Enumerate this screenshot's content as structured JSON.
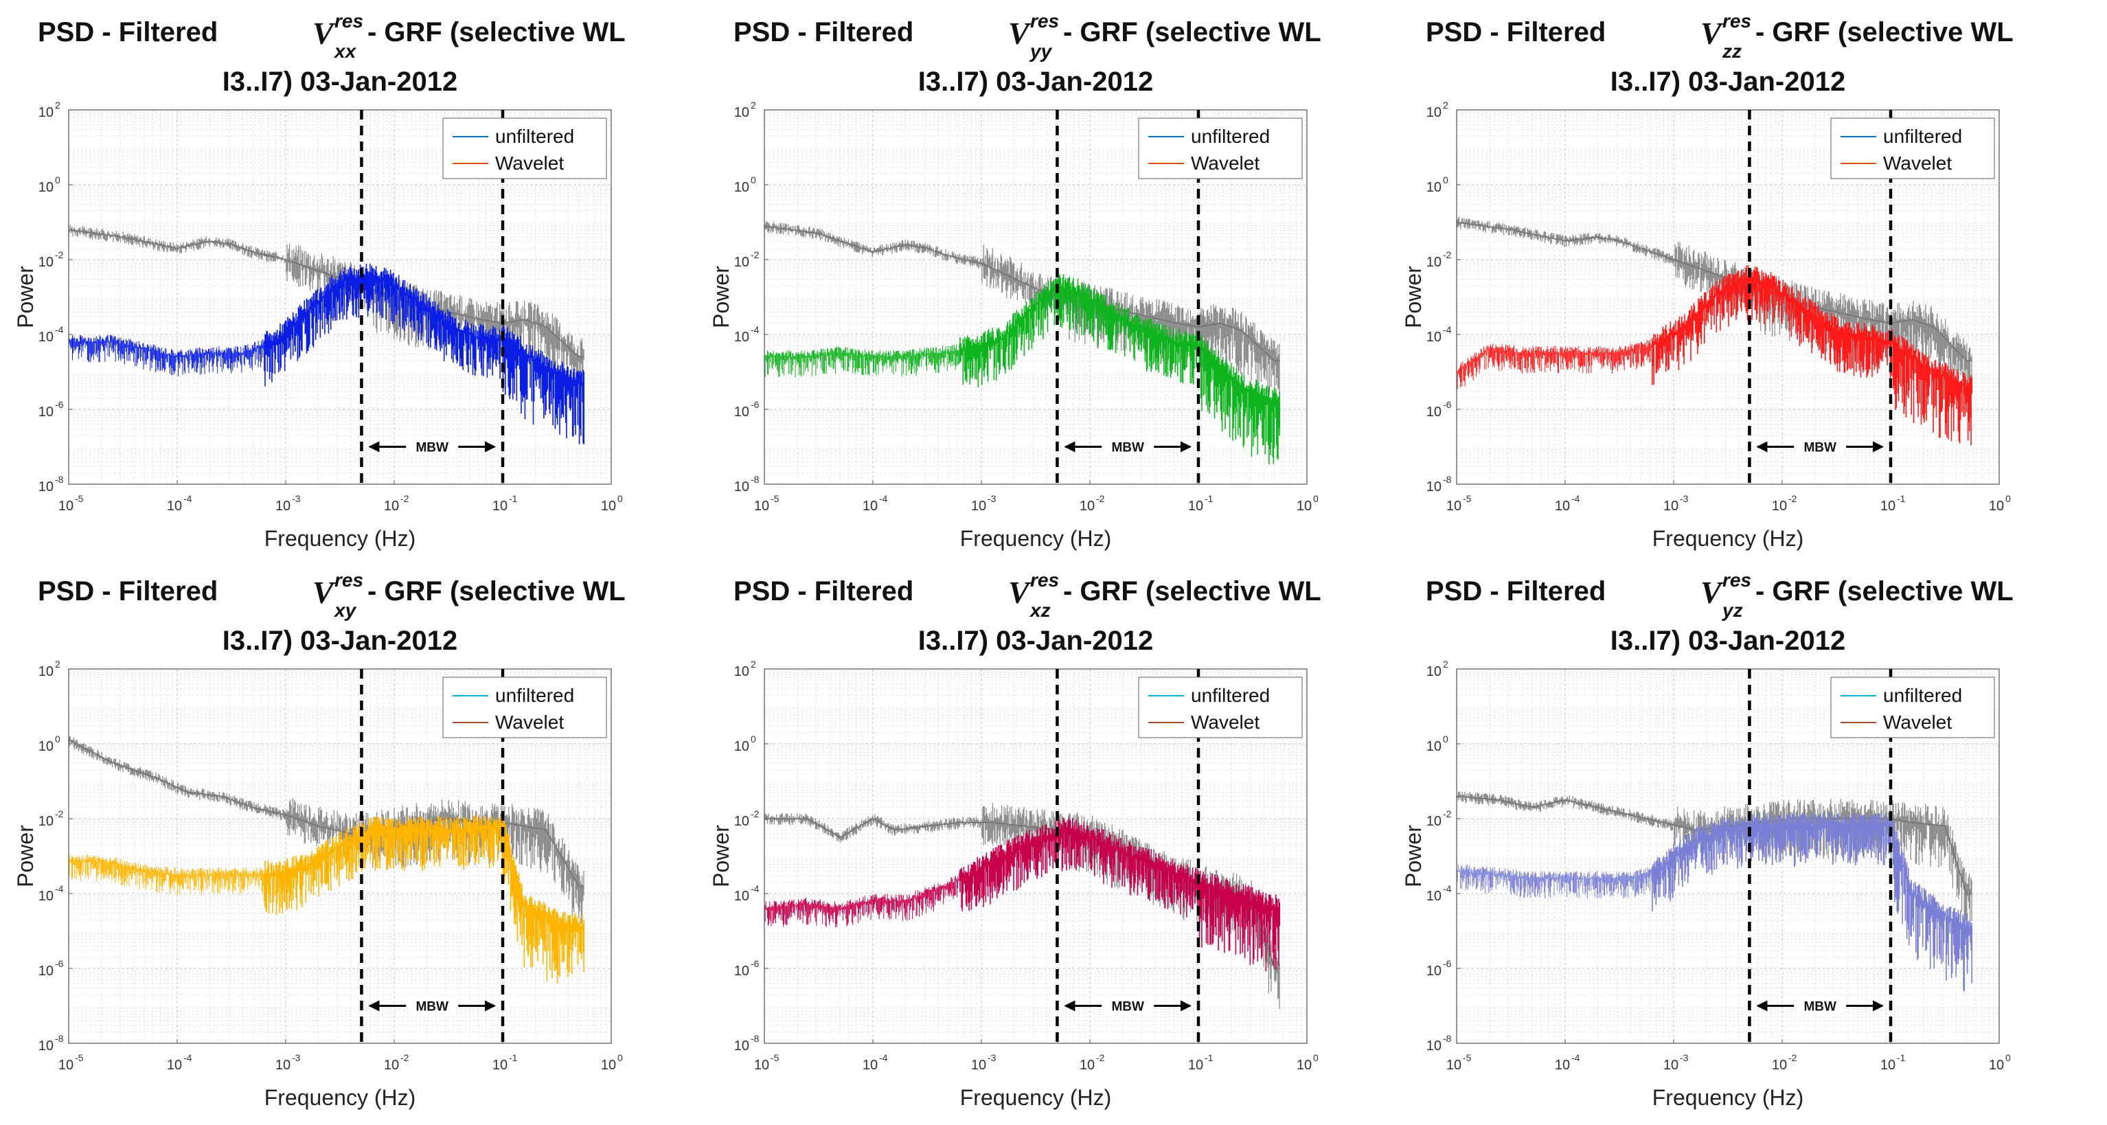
{
  "chart_data": [
    {
      "type": "line",
      "title_prefix": "PSD - Filtered",
      "title_symbol": "V",
      "title_sup": "res",
      "title_sub": "xx",
      "title_suffix": "- GRF (selective WL",
      "title_line2": "I3..I7) 03-Jan-2012",
      "xlabel": "Frequency (Hz)",
      "ylabel": "Power",
      "x_scale": "log",
      "y_scale": "log",
      "xlim": [
        1e-05,
        1
      ],
      "ylim": [
        1e-08,
        100
      ],
      "xticks": [
        "10",
        "10",
        "10",
        "10",
        "10",
        "10"
      ],
      "xtick_exp": [
        "-5",
        "-4",
        "-3",
        "-2",
        "-1",
        "0"
      ],
      "yticks": [
        "10",
        "10",
        "10",
        "10",
        "10",
        "10"
      ],
      "ytick_exp": [
        "-8",
        "-6",
        "-4",
        "-2",
        "0",
        "2"
      ],
      "grid": true,
      "legend_position": "top-right",
      "legend": [
        "unfiltered",
        "Wavelet"
      ],
      "band_lines_hz": [
        0.005,
        0.1
      ],
      "band_label": "MBW",
      "colors": {
        "unfiltered": "#0072bd",
        "wavelet": "#d95319",
        "fill": "#0a1ee6",
        "raw": "#8c8c8c"
      },
      "series": [
        {
          "name": "unfiltered (log10 power)",
          "x_log": [
            -5,
            -4.5,
            -4,
            -3.7,
            -3.5,
            -3.3,
            -3,
            -2.7,
            -2.4,
            -2.1,
            -1.8,
            -1.5,
            -1.2,
            -1,
            -0.8,
            -0.6,
            -0.3
          ],
          "y_log": [
            -1.2,
            -1.4,
            -1.7,
            -1.5,
            -1.6,
            -1.8,
            -2.0,
            -2.3,
            -2.6,
            -2.9,
            -3.2,
            -3.4,
            -3.6,
            -3.7,
            -3.6,
            -3.8,
            -4.6
          ]
        },
        {
          "name": "Wavelet (log10 power)",
          "x_log": [
            -5,
            -4.6,
            -4.3,
            -4,
            -3.7,
            -3.4,
            -3.1,
            -2.8,
            -2.5,
            -2.2,
            -2,
            -1.7,
            -1.4,
            -1.2,
            -1,
            -0.6,
            -0.3
          ],
          "y_log": [
            -4.2,
            -4.2,
            -4.4,
            -4.6,
            -4.5,
            -4.5,
            -4.2,
            -3.4,
            -2.6,
            -2.4,
            -2.7,
            -3.3,
            -3.9,
            -4.1,
            -4.1,
            -4.9,
            -5.3
          ]
        }
      ]
    },
    {
      "type": "line",
      "title_prefix": "PSD - Filtered",
      "title_symbol": "V",
      "title_sup": "res",
      "title_sub": "yy",
      "title_suffix": "- GRF (selective WL",
      "title_line2": "I3..I7) 03-Jan-2012",
      "xlabel": "Frequency (Hz)",
      "ylabel": "Power",
      "x_scale": "log",
      "y_scale": "log",
      "xlim": [
        1e-05,
        1
      ],
      "ylim": [
        1e-08,
        100
      ],
      "xticks": [
        "10",
        "10",
        "10",
        "10",
        "10",
        "10"
      ],
      "xtick_exp": [
        "-5",
        "-4",
        "-3",
        "-2",
        "-1",
        "0"
      ],
      "yticks": [
        "10",
        "10",
        "10",
        "10",
        "10",
        "10"
      ],
      "ytick_exp": [
        "-8",
        "-6",
        "-4",
        "-2",
        "0",
        "2"
      ],
      "grid": true,
      "legend_position": "top-right",
      "legend": [
        "unfiltered",
        "Wavelet"
      ],
      "band_lines_hz": [
        0.005,
        0.1
      ],
      "band_label": "MBW",
      "colors": {
        "unfiltered": "#0072bd",
        "wavelet": "#d95319",
        "fill": "#0fb41e",
        "raw": "#8c8c8c"
      },
      "series": [
        {
          "name": "unfiltered (log10 power)",
          "x_log": [
            -5,
            -4.5,
            -4,
            -3.7,
            -3.5,
            -3.3,
            -3,
            -2.7,
            -2.4,
            -2.1,
            -1.8,
            -1.5,
            -1.2,
            -1,
            -0.8,
            -0.6,
            -0.3
          ],
          "y_log": [
            -1.1,
            -1.3,
            -1.8,
            -1.6,
            -1.7,
            -1.9,
            -2.1,
            -2.5,
            -2.9,
            -3.1,
            -3.3,
            -3.5,
            -3.7,
            -3.8,
            -3.7,
            -3.9,
            -4.7
          ]
        },
        {
          "name": "Wavelet (log10 power)",
          "x_log": [
            -5,
            -4.6,
            -4.3,
            -4,
            -3.7,
            -3.4,
            -3.1,
            -2.8,
            -2.5,
            -2.3,
            -2.1,
            -1.8,
            -1.5,
            -1.2,
            -1,
            -0.6,
            -0.3
          ],
          "y_log": [
            -4.6,
            -4.6,
            -4.5,
            -4.6,
            -4.6,
            -4.5,
            -4.4,
            -4.1,
            -3.2,
            -2.7,
            -2.9,
            -3.4,
            -3.9,
            -4.2,
            -4.3,
            -5.4,
            -5.8
          ]
        }
      ]
    },
    {
      "type": "line",
      "title_prefix": "PSD - Filtered",
      "title_symbol": "V",
      "title_sup": "res",
      "title_sub": "zz",
      "title_suffix": "- GRF (selective WL",
      "title_line2": "I3..I7) 03-Jan-2012",
      "xlabel": "Frequency (Hz)",
      "ylabel": "Power",
      "x_scale": "log",
      "y_scale": "log",
      "xlim": [
        1e-05,
        1
      ],
      "ylim": [
        1e-08,
        100
      ],
      "xticks": [
        "10",
        "10",
        "10",
        "10",
        "10",
        "10"
      ],
      "xtick_exp": [
        "-5",
        "-4",
        "-3",
        "-2",
        "-1",
        "0"
      ],
      "yticks": [
        "10",
        "10",
        "10",
        "10",
        "10",
        "10"
      ],
      "ytick_exp": [
        "-8",
        "-6",
        "-4",
        "-2",
        "0",
        "2"
      ],
      "grid": true,
      "legend_position": "top-right",
      "legend": [
        "unfiltered",
        "Wavelet"
      ],
      "band_lines_hz": [
        0.005,
        0.1
      ],
      "band_label": "MBW",
      "colors": {
        "unfiltered": "#0072bd",
        "wavelet": "#d95319",
        "fill": "#ff1a1a",
        "raw": "#8c8c8c"
      },
      "series": [
        {
          "name": "unfiltered (log10 power)",
          "x_log": [
            -5,
            -4.5,
            -4,
            -3.7,
            -3.5,
            -3.3,
            -3,
            -2.7,
            -2.4,
            -2.1,
            -1.8,
            -1.5,
            -1.2,
            -1,
            -0.8,
            -0.6,
            -0.3
          ],
          "y_log": [
            -1.0,
            -1.2,
            -1.5,
            -1.4,
            -1.5,
            -1.7,
            -2.0,
            -2.3,
            -2.6,
            -2.9,
            -3.2,
            -3.4,
            -3.6,
            -3.7,
            -3.6,
            -3.8,
            -4.7
          ]
        },
        {
          "name": "Wavelet (log10 power)",
          "x_log": [
            -5,
            -4.7,
            -4.4,
            -4.1,
            -3.8,
            -3.5,
            -3.2,
            -2.9,
            -2.6,
            -2.3,
            -2.1,
            -1.8,
            -1.5,
            -1.2,
            -1,
            -0.6,
            -0.3
          ],
          "y_log": [
            -5.0,
            -4.4,
            -4.5,
            -4.5,
            -4.5,
            -4.5,
            -4.3,
            -3.8,
            -2.9,
            -2.5,
            -2.7,
            -3.3,
            -3.9,
            -4.1,
            -4.2,
            -5.0,
            -5.4
          ]
        }
      ]
    },
    {
      "type": "line",
      "title_prefix": "PSD - Filtered",
      "title_symbol": "V",
      "title_sup": "res",
      "title_sub": "xy",
      "title_suffix": "- GRF (selective WL",
      "title_line2": "I3..I7) 03-Jan-2012",
      "xlabel": "Frequency (Hz)",
      "ylabel": "Power",
      "x_scale": "log",
      "y_scale": "log",
      "xlim": [
        1e-05,
        1
      ],
      "ylim": [
        1e-08,
        100
      ],
      "xticks": [
        "10",
        "10",
        "10",
        "10",
        "10",
        "10"
      ],
      "xtick_exp": [
        "-5",
        "-4",
        "-3",
        "-2",
        "-1",
        "0"
      ],
      "yticks": [
        "10",
        "10",
        "10",
        "10",
        "10",
        "10"
      ],
      "ytick_exp": [
        "-8",
        "-6",
        "-4",
        "-2",
        "0",
        "2"
      ],
      "grid": true,
      "legend_position": "top-right",
      "legend": [
        "unfiltered",
        "Wavelet"
      ],
      "band_lines_hz": [
        0.005,
        0.1
      ],
      "band_label": "MBW",
      "colors": {
        "unfiltered": "#00b4d8",
        "wavelet": "#a0522d",
        "fill": "#ffb400",
        "raw": "#8c8c8c"
      },
      "series": [
        {
          "name": "unfiltered (log10 power)",
          "x_log": [
            -5,
            -4.6,
            -4.2,
            -3.9,
            -3.6,
            -3.3,
            -3,
            -2.7,
            -2.4,
            -2.1,
            -1.8,
            -1.5,
            -1.2,
            -1,
            -0.8,
            -0.6,
            -0.3
          ],
          "y_log": [
            0.1,
            -0.5,
            -0.9,
            -1.3,
            -1.4,
            -1.7,
            -1.9,
            -2.2,
            -2.4,
            -2.3,
            -2.1,
            -2.0,
            -2.1,
            -2.1,
            -2.2,
            -2.3,
            -3.8
          ]
        },
        {
          "name": "Wavelet (log10 power)",
          "x_log": [
            -5,
            -4.6,
            -4.3,
            -4,
            -3.7,
            -3.4,
            -3.1,
            -2.8,
            -2.5,
            -2.2,
            -1.9,
            -1.6,
            -1.3,
            -1,
            -0.8,
            -0.5,
            -0.3
          ],
          "y_log": [
            -3.1,
            -3.2,
            -3.4,
            -3.5,
            -3.5,
            -3.5,
            -3.5,
            -3.3,
            -2.7,
            -2.3,
            -2.3,
            -2.3,
            -2.3,
            -2.2,
            -4.3,
            -4.8,
            -4.9
          ]
        }
      ]
    },
    {
      "type": "line",
      "title_prefix": "PSD - Filtered",
      "title_symbol": "V",
      "title_sup": "res",
      "title_sub": "xz",
      "title_suffix": "- GRF (selective WL",
      "title_line2": "I3..I7) 03-Jan-2012",
      "xlabel": "Frequency (Hz)",
      "ylabel": "Power",
      "x_scale": "log",
      "y_scale": "log",
      "xlim": [
        1e-05,
        1
      ],
      "ylim": [
        1e-08,
        100
      ],
      "xticks": [
        "10",
        "10",
        "10",
        "10",
        "10",
        "10"
      ],
      "xtick_exp": [
        "-5",
        "-4",
        "-3",
        "-2",
        "-1",
        "0"
      ],
      "yticks": [
        "10",
        "10",
        "10",
        "10",
        "10",
        "10"
      ],
      "ytick_exp": [
        "-8",
        "-6",
        "-4",
        "-2",
        "0",
        "2"
      ],
      "grid": true,
      "legend_position": "top-right",
      "legend": [
        "unfiltered",
        "Wavelet"
      ],
      "band_lines_hz": [
        0.005,
        0.1
      ],
      "band_label": "MBW",
      "colors": {
        "unfiltered": "#00b4d8",
        "wavelet": "#a0522d",
        "fill": "#c8004b",
        "raw": "#8c8c8c"
      },
      "series": [
        {
          "name": "unfiltered (log10 power)",
          "x_log": [
            -5,
            -4.6,
            -4.3,
            -4,
            -3.8,
            -3.5,
            -3.2,
            -2.9,
            -2.6,
            -2.3,
            -2,
            -1.7,
            -1.4,
            -1.1,
            -0.8,
            -0.5,
            -0.3
          ],
          "y_log": [
            -2.0,
            -2.0,
            -2.5,
            -2.0,
            -2.3,
            -2.2,
            -2.1,
            -2.1,
            -2.2,
            -2.3,
            -2.4,
            -2.8,
            -3.3,
            -3.6,
            -3.9,
            -4.1,
            -6.0
          ]
        },
        {
          "name": "Wavelet (log10 power)",
          "x_log": [
            -5,
            -4.6,
            -4.3,
            -4,
            -3.7,
            -3.4,
            -3.1,
            -2.8,
            -2.5,
            -2.2,
            -2,
            -1.7,
            -1.4,
            -1.1,
            -0.8,
            -0.5,
            -0.3
          ],
          "y_log": [
            -4.4,
            -4.3,
            -4.4,
            -4.2,
            -4.2,
            -3.9,
            -3.5,
            -3.0,
            -2.6,
            -2.3,
            -2.5,
            -2.9,
            -3.2,
            -3.6,
            -3.9,
            -4.2,
            -4.4
          ]
        }
      ]
    },
    {
      "type": "line",
      "title_prefix": "PSD - Filtered",
      "title_symbol": "V",
      "title_sup": "res",
      "title_sub": "yz",
      "title_suffix": "- GRF (selective WL",
      "title_line2": "I3..I7) 03-Jan-2012",
      "xlabel": "Frequency (Hz)",
      "ylabel": "Power",
      "x_scale": "log",
      "y_scale": "log",
      "xlim": [
        1e-05,
        1
      ],
      "ylim": [
        1e-08,
        100
      ],
      "xticks": [
        "10",
        "10",
        "10",
        "10",
        "10",
        "10"
      ],
      "xtick_exp": [
        "-5",
        "-4",
        "-3",
        "-2",
        "-1",
        "0"
      ],
      "yticks": [
        "10",
        "10",
        "10",
        "10",
        "10",
        "10"
      ],
      "ytick_exp": [
        "-8",
        "-6",
        "-4",
        "-2",
        "0",
        "2"
      ],
      "grid": true,
      "legend_position": "top-right",
      "legend": [
        "unfiltered",
        "Wavelet"
      ],
      "band_lines_hz": [
        0.005,
        0.1
      ],
      "band_label": "MBW",
      "colors": {
        "unfiltered": "#00b4d8",
        "wavelet": "#a0522d",
        "fill": "#7b80d6",
        "raw": "#8c8c8c"
      },
      "series": [
        {
          "name": "unfiltered (log10 power)",
          "x_log": [
            -5,
            -4.6,
            -4.3,
            -4,
            -3.7,
            -3.4,
            -3.1,
            -2.8,
            -2.5,
            -2.2,
            -1.9,
            -1.6,
            -1.3,
            -1,
            -0.8,
            -0.5,
            -0.3
          ],
          "y_log": [
            -1.4,
            -1.5,
            -1.7,
            -1.5,
            -1.7,
            -1.9,
            -2.1,
            -2.3,
            -2.2,
            -2.1,
            -2.0,
            -2.0,
            -2.0,
            -2.0,
            -2.1,
            -2.2,
            -4.0
          ]
        },
        {
          "name": "Wavelet (log10 power)",
          "x_log": [
            -5,
            -4.6,
            -4.3,
            -4,
            -3.7,
            -3.4,
            -3.1,
            -2.8,
            -2.5,
            -2.2,
            -1.9,
            -1.6,
            -1.3,
            -1,
            -0.8,
            -0.5,
            -0.3
          ],
          "y_log": [
            -3.4,
            -3.5,
            -3.6,
            -3.6,
            -3.6,
            -3.6,
            -3.3,
            -2.6,
            -2.3,
            -2.2,
            -2.2,
            -2.2,
            -2.2,
            -2.2,
            -4.0,
            -4.6,
            -4.9
          ]
        }
      ]
    }
  ]
}
